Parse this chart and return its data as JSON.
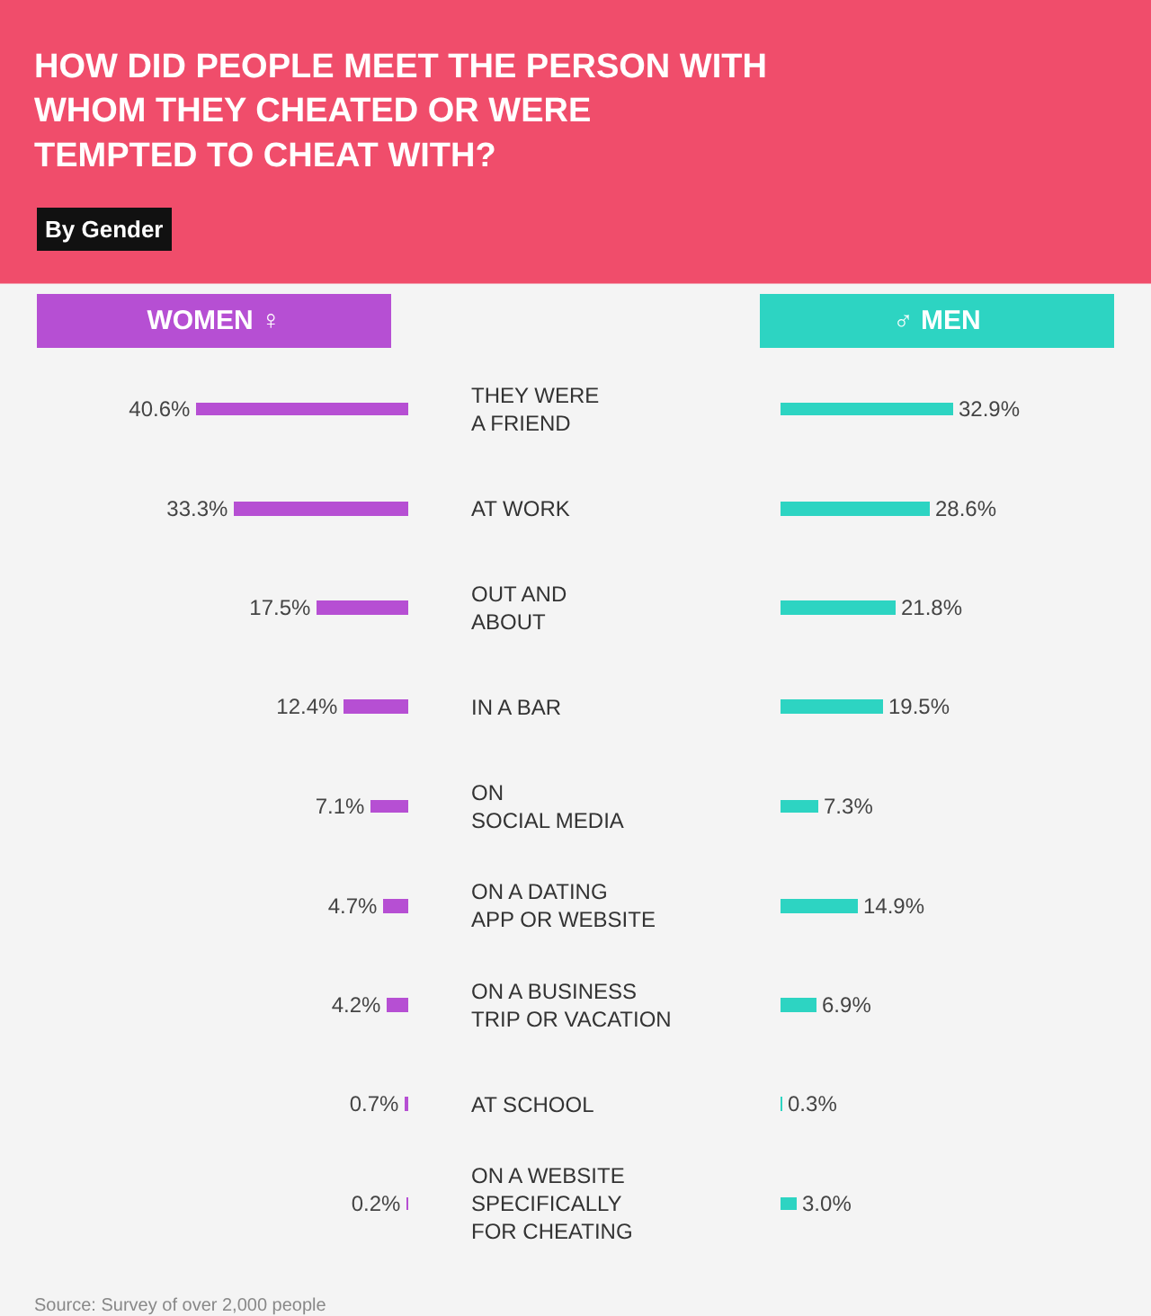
{
  "chart_data": [
    {
      "type": "bar",
      "orientation": "horizontal",
      "title": "HOW DID PEOPLE MEET THE PERSON WITH\nWHOM THEY CHEATED OR WERE\nTEMPTED TO CHEAT WITH?",
      "subtitle": "By Gender",
      "categories": [
        "THEY WERE\nA FRIEND",
        "AT WORK",
        "OUT AND\nABOUT",
        "IN A BAR",
        "ON\nSOCIAL MEDIA",
        "ON A DATING\nAPP OR WEBSITE",
        "ON A BUSINESS\nTRIP OR VACATION",
        "AT SCHOOL",
        "ON A WEBSITE\nSPECIFICALLY\nFOR CHEATING"
      ],
      "series": [
        {
          "name": "WOMEN ♀",
          "color": "#b64fd3",
          "values": [
            40.6,
            33.3,
            17.5,
            12.4,
            7.1,
            4.7,
            4.2,
            0.7,
            0.2
          ],
          "value_labels": [
            "40.6%",
            "33.3%",
            "17.5%",
            "12.4%",
            "7.1%",
            "4.7%",
            "4.2%",
            "0.7%",
            "0.2%"
          ]
        }
      ],
      "tick_labels": "y",
      "grid": false,
      "annotations": [
        "Source: Survey of over 2,000 people"
      ]
    },
    {
      "type": "bar",
      "orientation": "horizontal",
      "series": [
        {
          "name": "♂ MEN",
          "color": "#2dd4c2",
          "values": [
            32.9,
            28.6,
            21.8,
            19.5,
            7.3,
            14.9,
            6.9,
            0.3,
            3.0
          ],
          "value_labels": [
            "32.9%",
            "28.6%",
            "21.8%",
            "19.5%",
            "7.3%",
            "14.9%",
            "6.9%",
            "0.3%",
            "3.0%"
          ]
        }
      ],
      "tick_labels": false,
      "grid": false
    }
  ]
}
